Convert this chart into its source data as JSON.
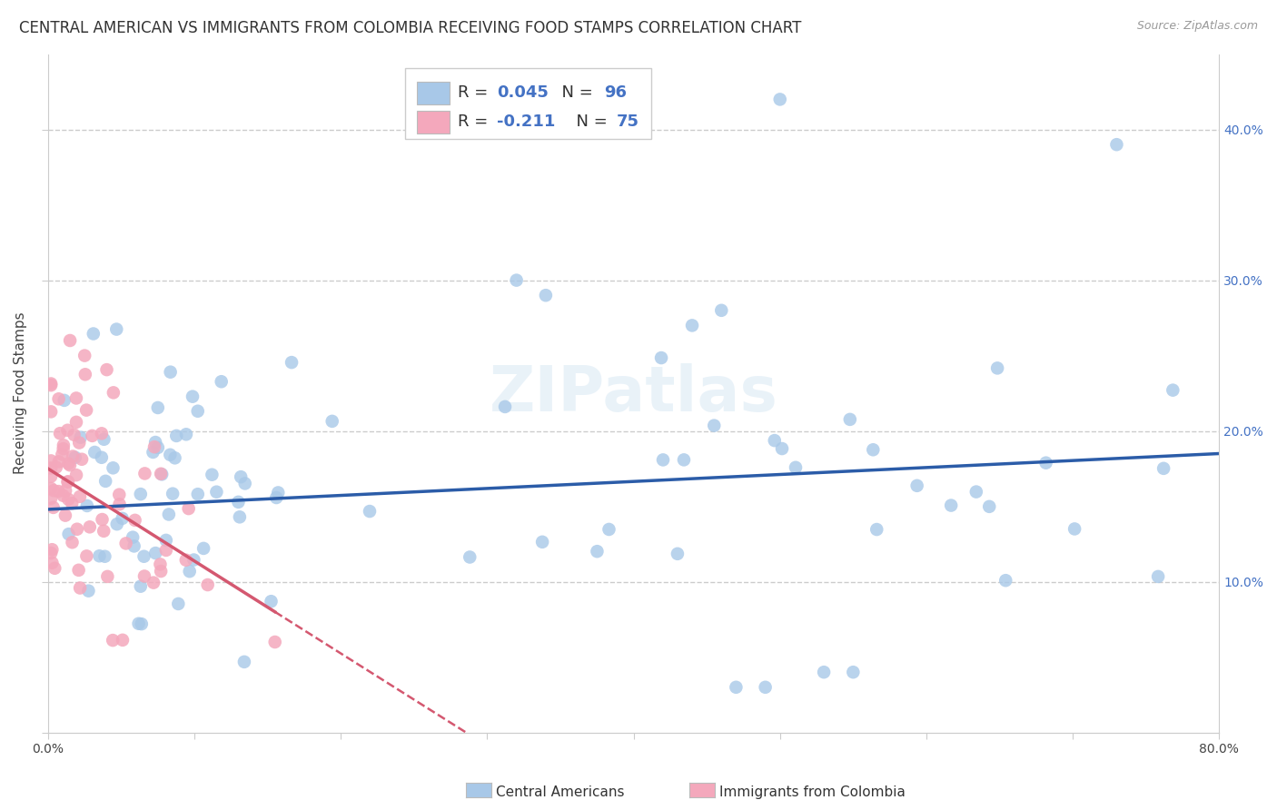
{
  "title": "CENTRAL AMERICAN VS IMMIGRANTS FROM COLOMBIA RECEIVING FOOD STAMPS CORRELATION CHART",
  "source": "Source: ZipAtlas.com",
  "ylabel": "Receiving Food Stamps",
  "xlim": [
    0,
    0.8
  ],
  "ylim": [
    0,
    0.45
  ],
  "blue_color": "#a8c8e8",
  "pink_color": "#f4a8bc",
  "blue_line_color": "#2b5ca8",
  "pink_line_color": "#d45870",
  "watermark": "ZIPatlas",
  "blue_R": 0.045,
  "blue_N": 96,
  "pink_R": -0.211,
  "pink_N": 75,
  "background_color": "#ffffff",
  "grid_color": "#cccccc",
  "title_fontsize": 12,
  "axis_fontsize": 11,
  "tick_fontsize": 10,
  "watermark_fontsize": 50
}
